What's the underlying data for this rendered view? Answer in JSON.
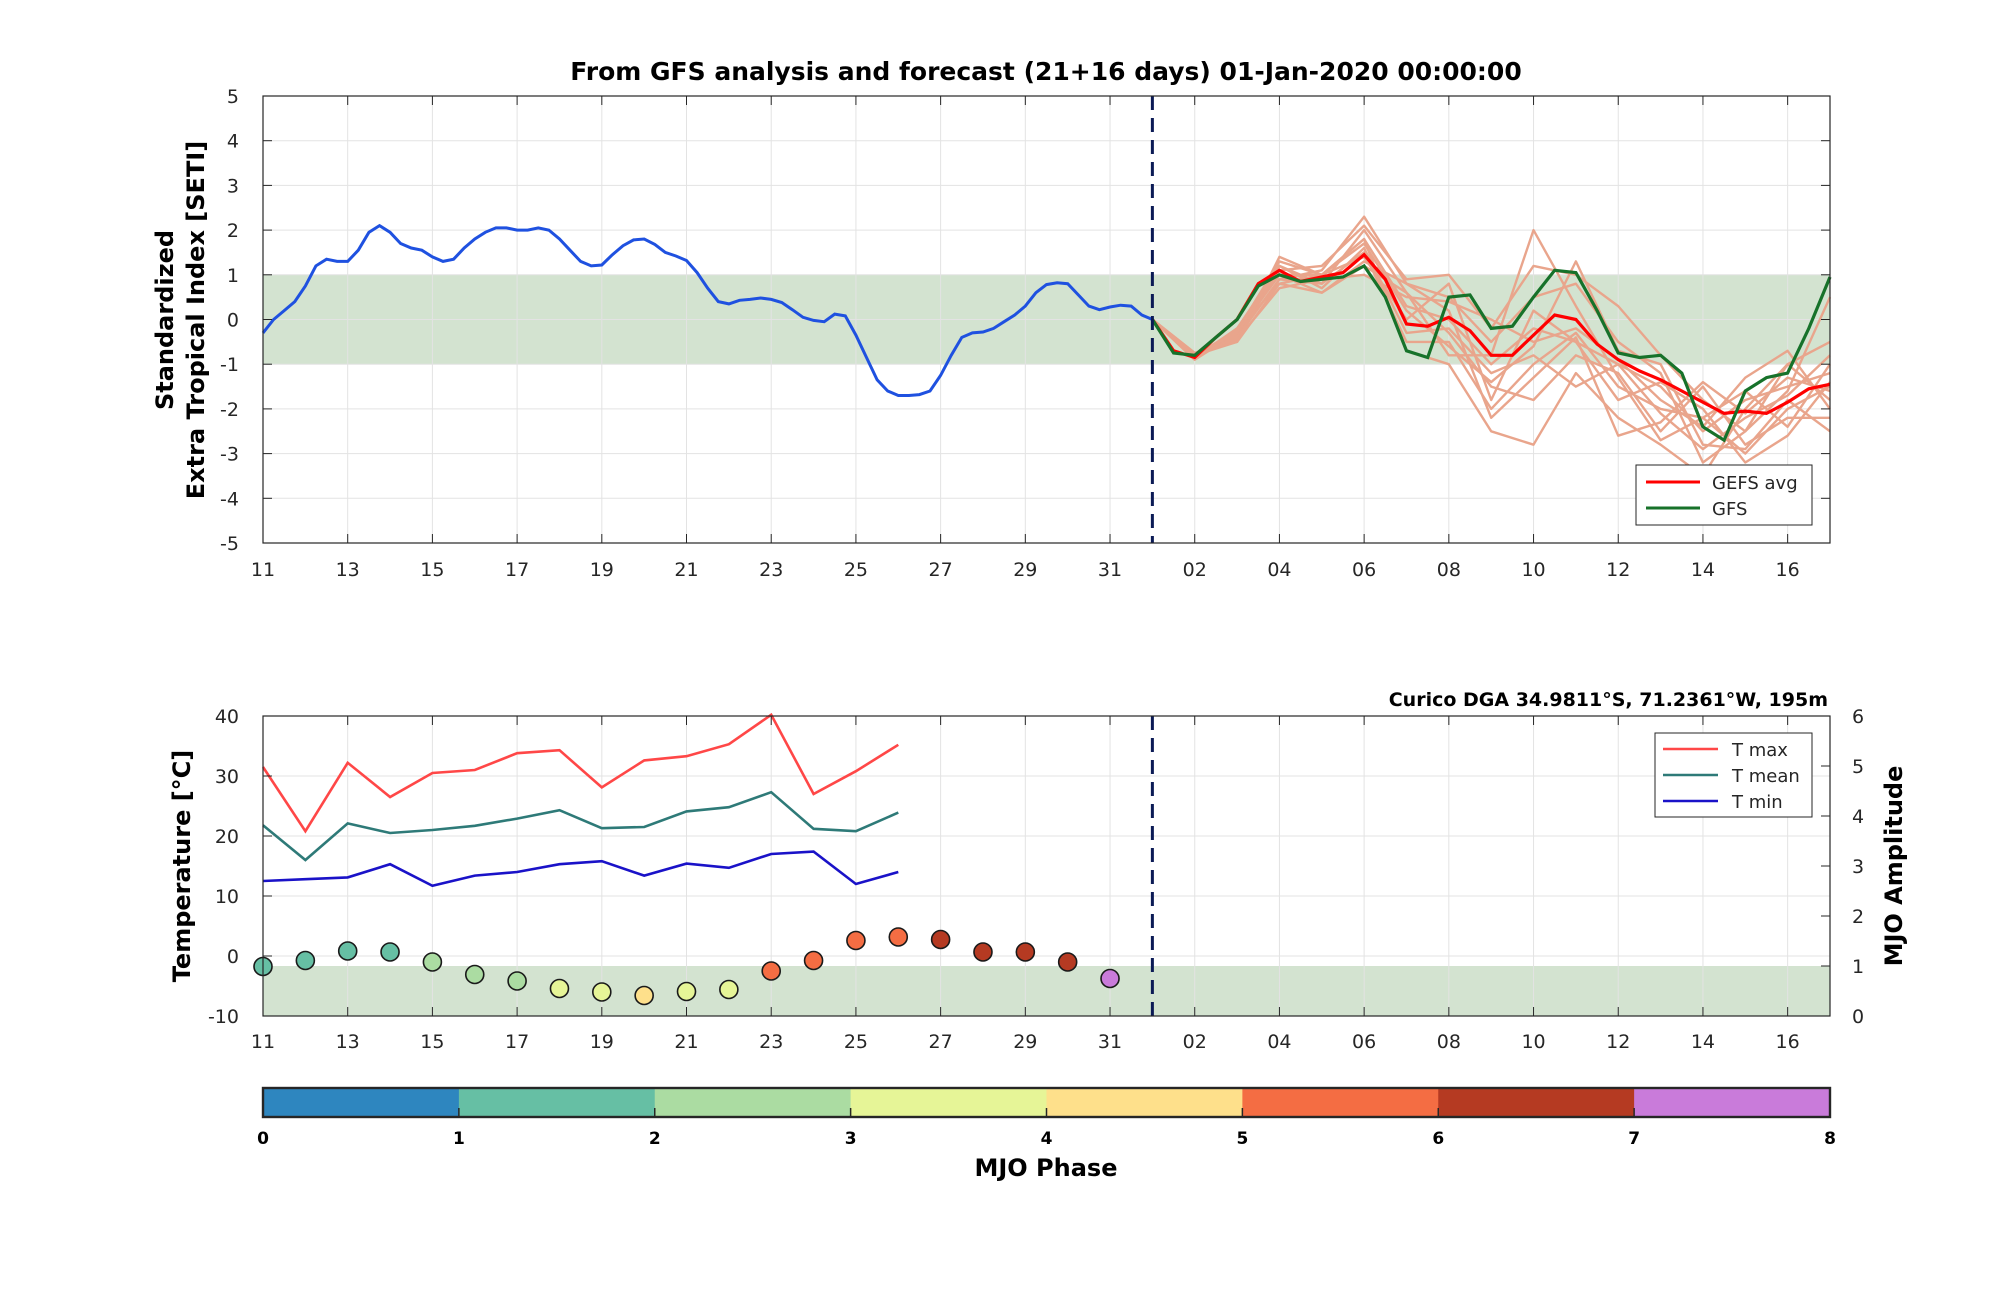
{
  "chart_data": [
    {
      "type": "line",
      "title": "From GFS analysis and forecast (21+16 days) 01-Jan-2020 00:00:00",
      "ylabel_lines": [
        "Standardized",
        "Extra Tropical Index [SETI]"
      ],
      "ylim": [
        -5,
        5
      ],
      "yticks": [
        5,
        4,
        3,
        2,
        1,
        0,
        -1,
        -2,
        -3,
        -4,
        -5
      ],
      "xlim_days": [
        0,
        37
      ],
      "xticks": [
        {
          "day": 0,
          "label": "11"
        },
        {
          "day": 2,
          "label": "13"
        },
        {
          "day": 4,
          "label": "15"
        },
        {
          "day": 6,
          "label": "17"
        },
        {
          "day": 8,
          "label": "19"
        },
        {
          "day": 10,
          "label": "21"
        },
        {
          "day": 12,
          "label": "23"
        },
        {
          "day": 14,
          "label": "25"
        },
        {
          "day": 16,
          "label": "27"
        },
        {
          "day": 18,
          "label": "29"
        },
        {
          "day": 20,
          "label": "31"
        },
        {
          "day": 22,
          "label": "02"
        },
        {
          "day": 24,
          "label": "04"
        },
        {
          "day": 26,
          "label": "06"
        },
        {
          "day": 28,
          "label": "08"
        },
        {
          "day": 30,
          "label": "10"
        },
        {
          "day": 32,
          "label": "12"
        },
        {
          "day": 34,
          "label": "14"
        },
        {
          "day": 36,
          "label": "16"
        }
      ],
      "band": [
        -1,
        1
      ],
      "band_color": "#d3e3d0",
      "forecast_start_day": 21,
      "analysis": {
        "color": "#1f51e0",
        "x": [
          0,
          0.25,
          0.5,
          0.75,
          1,
          1.25,
          1.5,
          1.75,
          2,
          2.25,
          2.5,
          2.75,
          3,
          3.25,
          3.5,
          3.75,
          4,
          4.25,
          4.5,
          4.75,
          5,
          5.25,
          5.5,
          5.75,
          6,
          6.25,
          6.5,
          6.75,
          7,
          7.25,
          7.5,
          7.75,
          8,
          8.25,
          8.5,
          8.75,
          9,
          9.25,
          9.5,
          9.75,
          10,
          10.25,
          10.5,
          10.75,
          11,
          11.25,
          11.5,
          11.75,
          12,
          12.25,
          12.5,
          12.75,
          13,
          13.25,
          13.5,
          13.75,
          14,
          14.25,
          14.5,
          14.75,
          15,
          15.25,
          15.5,
          15.75,
          16,
          16.25,
          16.5,
          16.75,
          17,
          17.25,
          17.5,
          17.75,
          18,
          18.25,
          18.5,
          18.75,
          19,
          19.25,
          19.5,
          19.75,
          20,
          20.25,
          20.5,
          20.75,
          21
        ],
        "y": [
          -0.3,
          0,
          0.2,
          0.4,
          0.75,
          1.2,
          1.35,
          1.3,
          1.3,
          1.55,
          1.95,
          2.1,
          1.95,
          1.7,
          1.6,
          1.55,
          1.4,
          1.3,
          1.35,
          1.6,
          1.8,
          1.95,
          2.05,
          2.05,
          2.0,
          2.0,
          2.05,
          2.0,
          1.8,
          1.55,
          1.3,
          1.2,
          1.22,
          1.45,
          1.65,
          1.78,
          1.8,
          1.68,
          1.5,
          1.42,
          1.32,
          1.05,
          0.7,
          0.4,
          0.35,
          0.43,
          0.45,
          0.48,
          0.45,
          0.38,
          0.22,
          0.05,
          -0.02,
          -0.05,
          0.12,
          0.08,
          -0.35,
          -0.85,
          -1.35,
          -1.6,
          -1.7,
          -1.7,
          -1.68,
          -1.6,
          -1.25,
          -0.8,
          -0.4,
          -0.3,
          -0.28,
          -0.2,
          -0.05,
          0.1,
          0.3,
          0.6,
          0.78,
          0.82,
          0.8,
          0.55,
          0.3,
          0.22,
          0.28,
          0.32,
          0.3,
          0.1,
          0
        ]
      },
      "ensemble": {
        "color": "#e9a58c",
        "x": [
          21,
          22,
          23,
          24,
          25,
          26,
          27,
          28,
          29,
          30,
          31,
          32,
          33,
          34,
          35,
          36,
          37
        ],
        "members": [
          [
            0,
            -0.8,
            -0.5,
            0.8,
            1.0,
            1.8,
            0.3,
            0.0,
            -1.0,
            -0.2,
            -0.5,
            -1.0,
            -1.5,
            -2.5,
            -1.8,
            -1.5,
            -1.2
          ],
          [
            0,
            -0.85,
            -0.2,
            1.2,
            0.8,
            1.5,
            -0.5,
            -0.5,
            -2.0,
            -1.0,
            -0.3,
            -1.5,
            -2.0,
            -2.2,
            -3.0,
            -2.0,
            -1.5
          ],
          [
            0,
            -0.75,
            -0.4,
            0.9,
            1.1,
            2.3,
            0.8,
            0.5,
            -0.5,
            0.5,
            0.8,
            -0.5,
            -1.2,
            -3.2,
            -2.5,
            -1.0,
            -0.5
          ],
          [
            0,
            -0.9,
            -0.3,
            1.0,
            0.6,
            1.2,
            0.6,
            -0.3,
            -1.5,
            -1.8,
            -0.8,
            -1.2,
            -2.5,
            -1.5,
            -2.8,
            -2.2,
            -2.2
          ],
          [
            0,
            -0.8,
            -0.25,
            1.3,
            1.0,
            1.8,
            -0.7,
            -1.0,
            -2.5,
            -2.8,
            -1.2,
            -2.2,
            -2.8,
            -3.5,
            -2.0,
            -1.0,
            -1.8
          ],
          [
            0,
            -0.85,
            -0.35,
            1.1,
            1.2,
            2.1,
            0.9,
            1.0,
            -0.2,
            1.2,
            1.0,
            0.3,
            -0.8,
            -1.8,
            -2.5,
            -1.6,
            0.5
          ],
          [
            0,
            -0.78,
            -0.45,
            0.7,
            0.9,
            1.0,
            0.5,
            0.4,
            0.0,
            -0.5,
            -0.2,
            -0.9,
            -1.8,
            -2.4,
            -1.3,
            -0.7,
            -2.0
          ],
          [
            0,
            -0.82,
            -0.3,
            1.2,
            0.7,
            1.6,
            -0.3,
            -0.2,
            -1.2,
            -0.8,
            -1.5,
            -1.0,
            -2.1,
            -2.9,
            -2.2,
            -1.7,
            -0.8
          ],
          [
            0,
            -0.9,
            -0.2,
            1.0,
            1.0,
            1.4,
            0.0,
            0.8,
            -1.8,
            0.2,
            -0.5,
            -1.8,
            -1.4,
            -2.0,
            -3.2,
            -2.6,
            -1.4
          ],
          [
            0,
            -0.8,
            -0.4,
            0.9,
            0.8,
            2.0,
            0.6,
            -0.8,
            -0.8,
            2.0,
            0.3,
            -1.3,
            -2.7,
            -2.2,
            -1.6,
            -2.4,
            -1.0
          ],
          [
            0,
            -0.75,
            -0.5,
            1.4,
            1.0,
            1.7,
            0.2,
            -0.6,
            -1.4,
            -0.6,
            1.3,
            -0.7,
            -1.0,
            -2.8,
            -2.9,
            -1.8,
            -2.5
          ],
          [
            0,
            -0.85,
            -0.25,
            0.8,
            0.6,
            1.3,
            0.8,
            0.2,
            -2.2,
            -1.3,
            -0.4,
            -2.6,
            -2.3,
            -1.4,
            -2.1,
            -1.3,
            -1.6
          ]
        ]
      },
      "series": [
        {
          "name": "GEFS avg",
          "color": "#ff0000",
          "x": [
            21,
            21.5,
            22,
            22.5,
            23,
            23.5,
            24,
            24.5,
            25,
            25.5,
            26,
            26.5,
            27,
            27.5,
            28,
            28.5,
            29,
            29.5,
            30,
            30.5,
            31,
            31.5,
            32,
            32.5,
            33,
            33.5,
            34,
            34.5,
            35,
            35.5,
            36,
            36.5,
            37
          ],
          "y": [
            0,
            -0.7,
            -0.85,
            -0.4,
            0,
            0.8,
            1.1,
            0.85,
            0.95,
            1.05,
            1.45,
            0.9,
            -0.1,
            -0.15,
            0.05,
            -0.25,
            -0.8,
            -0.8,
            -0.35,
            0.1,
            0,
            -0.55,
            -0.9,
            -1.15,
            -1.35,
            -1.6,
            -1.85,
            -2.1,
            -2.05,
            -2.1,
            -1.85,
            -1.55,
            -1.45
          ]
        },
        {
          "name": "GFS",
          "color": "#17722a",
          "x": [
            21,
            21.5,
            22,
            22.5,
            23,
            23.5,
            24,
            24.5,
            25,
            25.5,
            26,
            26.5,
            27,
            27.5,
            28,
            28.5,
            29,
            29.5,
            30,
            30.5,
            31,
            31.5,
            32,
            32.5,
            33,
            33.5,
            34,
            34.5,
            35,
            35.5,
            36,
            36.5,
            37
          ],
          "y": [
            0,
            -0.75,
            -0.8,
            -0.4,
            0,
            0.75,
            1.0,
            0.85,
            0.9,
            0.95,
            1.2,
            0.5,
            -0.7,
            -0.85,
            0.5,
            0.55,
            -0.2,
            -0.15,
            0.5,
            1.1,
            1.05,
            0.2,
            -0.75,
            -0.85,
            -0.8,
            -1.2,
            -2.4,
            -2.7,
            -1.6,
            -1.3,
            -1.2,
            -0.2,
            0.95
          ]
        }
      ]
    },
    {
      "type": "line",
      "title": "Curico DGA 34.9811°S, 71.2361°W, 195m",
      "ylabel": "Temperature [°C]",
      "ylim": [
        -10,
        40
      ],
      "yticks": [
        40,
        30,
        20,
        10,
        0,
        -10
      ],
      "ylabel_right": "MJO Amplitude",
      "ylim_right": [
        0,
        6
      ],
      "yticks_right": [
        6,
        5,
        4,
        3,
        2,
        1,
        0
      ],
      "band_right": [
        0,
        1
      ],
      "forecast_start_day": 21,
      "series": [
        {
          "name": "T max",
          "color": "#ff4747",
          "x": [
            0,
            1,
            2,
            3,
            4,
            5,
            6,
            7,
            8,
            9,
            10,
            11,
            12,
            13,
            14,
            15
          ],
          "y": [
            31.5,
            20.8,
            32.2,
            26.5,
            30.5,
            31.0,
            33.8,
            34.3,
            28.1,
            32.6,
            33.3,
            35.3,
            40.2,
            27.0,
            30.8,
            35.2
          ]
        },
        {
          "name": "T mean",
          "color": "#2e7a78",
          "x": [
            0,
            1,
            2,
            3,
            4,
            5,
            6,
            7,
            8,
            9,
            10,
            11,
            12,
            13,
            14,
            15
          ],
          "y": [
            21.8,
            16.0,
            22.1,
            20.5,
            21.0,
            21.7,
            22.9,
            24.3,
            21.3,
            21.5,
            24.1,
            24.8,
            27.3,
            21.2,
            20.8,
            23.9
          ]
        },
        {
          "name": "T min",
          "color": "#1a12c8",
          "x": [
            0,
            1,
            2,
            3,
            4,
            5,
            6,
            7,
            8,
            9,
            10,
            11,
            12,
            13,
            14,
            15
          ],
          "y": [
            12.5,
            12.8,
            13.1,
            15.3,
            11.7,
            13.4,
            14.0,
            15.3,
            15.8,
            13.4,
            15.4,
            14.7,
            17.0,
            17.4,
            12.0,
            14.0
          ]
        }
      ],
      "mjo": {
        "x": [
          0,
          1,
          2,
          3,
          4,
          5,
          6,
          7,
          8,
          9,
          10,
          11,
          12,
          13,
          14,
          15,
          16,
          17,
          18,
          19,
          20
        ],
        "amplitude": [
          0.99,
          1.11,
          1.3,
          1.28,
          1.08,
          0.83,
          0.7,
          0.55,
          0.48,
          0.41,
          0.49,
          0.53,
          0.9,
          1.11,
          1.51,
          1.58,
          1.53,
          1.28,
          1.28,
          1.08,
          0.75
        ],
        "phase": [
          1,
          1,
          1,
          1,
          2,
          2,
          2,
          3,
          3,
          4,
          3,
          3,
          5,
          5,
          5,
          5,
          6,
          6,
          6,
          6,
          7
        ]
      }
    },
    {
      "type": "colorbar",
      "label": "MJO Phase",
      "ticks": [
        "0",
        "1",
        "2",
        "3",
        "4",
        "5",
        "6",
        "7",
        "8"
      ],
      "colors": [
        "#2e86bf",
        "#66bfa4",
        "#abdca2",
        "#e6f597",
        "#fee08b",
        "#f46d43",
        "#b53a22",
        "#c97bda"
      ]
    }
  ]
}
